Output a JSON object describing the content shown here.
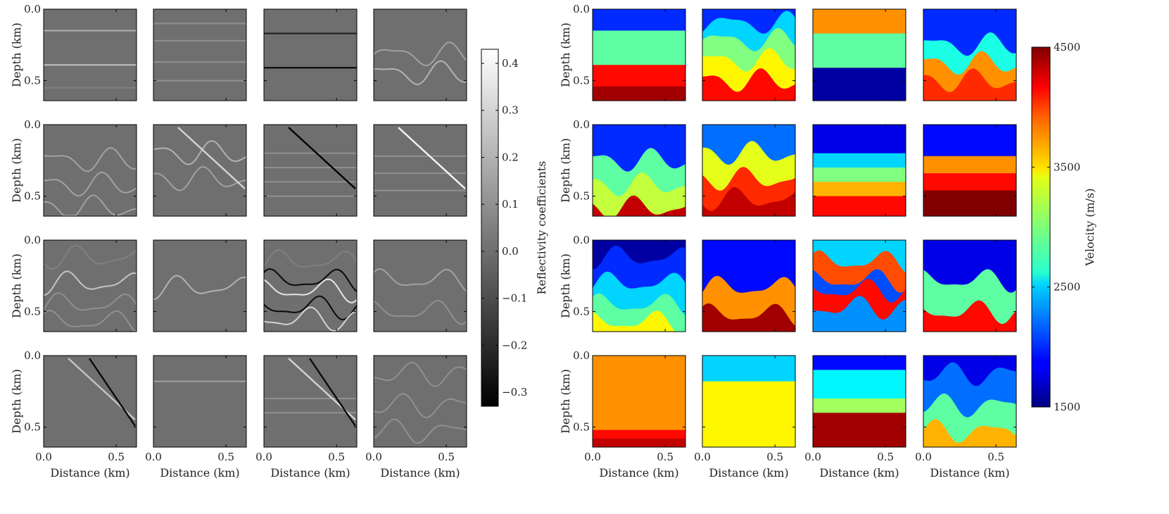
{
  "chart_data": [
    {
      "type": "heatmap",
      "title": "",
      "xlabel": "Distance (km)",
      "ylabel": "Depth (km)",
      "xlim": [
        0,
        0.64
      ],
      "ylim": [
        0.64,
        0
      ],
      "xticks": [
        "0.0",
        "0.5"
      ],
      "yticks": [
        "0.0",
        "0.5"
      ],
      "grid": [
        4,
        4
      ],
      "colorbar": {
        "label": "Reflectivity coefficients",
        "colormap": "gray",
        "range": [
          -0.33,
          0.43
        ],
        "ticks": [
          "−0.3",
          "−0.2",
          "−0.1",
          "0.0",
          "0.1",
          "0.2",
          "0.3",
          "0.4"
        ],
        "tick_values": [
          -0.3,
          -0.2,
          -0.1,
          0.0,
          0.1,
          0.2,
          0.3,
          0.4
        ]
      },
      "background_value": 0.0,
      "panels": [
        {
          "row": 0,
          "col": 0,
          "reflectors": [
            {
              "depth": 0.15,
              "value": 0.2
            },
            {
              "depth": 0.39,
              "value": 0.25
            },
            {
              "depth": 0.55,
              "value": 0.05
            }
          ]
        },
        {
          "row": 0,
          "col": 1,
          "reflectors": [
            {
              "depth": 0.1,
              "value": 0.1
            },
            {
              "depth": 0.22,
              "value": 0.1
            },
            {
              "depth": 0.37,
              "value": 0.1
            },
            {
              "depth": 0.5,
              "value": 0.1
            }
          ]
        },
        {
          "row": 0,
          "col": 2,
          "reflectors": [
            {
              "depth": 0.17,
              "value": -0.25
            },
            {
              "depth": 0.41,
              "value": -0.33
            }
          ]
        },
        {
          "row": 0,
          "col": 3,
          "reflectors": [
            {
              "depth": 0.32,
              "value": 0.15,
              "wavy": true
            },
            {
              "depth": 0.45,
              "value": 0.2,
              "wavy": true
            }
          ]
        },
        {
          "row": 1,
          "col": 0,
          "reflectors": [
            {
              "depth": 0.25,
              "value": 0.15,
              "wavy": true
            },
            {
              "depth": 0.42,
              "value": 0.15,
              "wavy": true
            },
            {
              "depth": 0.58,
              "value": 0.15,
              "wavy": true
            }
          ]
        },
        {
          "row": 1,
          "col": 1,
          "reflectors": [
            {
              "depth": 0.2,
              "value": 0.2,
              "wavy": true
            },
            {
              "depth": 0.38,
              "value": 0.15,
              "wavy": true
            },
            {
              "dipping": true,
              "value": 0.3
            }
          ]
        },
        {
          "row": 1,
          "col": 2,
          "reflectors": [
            {
              "depth": 0.2,
              "value": 0.1
            },
            {
              "depth": 0.3,
              "value": 0.1
            },
            {
              "depth": 0.4,
              "value": 0.1
            },
            {
              "depth": 0.5,
              "value": 0.1
            },
            {
              "dipping": true,
              "value": -0.33
            }
          ]
        },
        {
          "row": 1,
          "col": 3,
          "reflectors": [
            {
              "depth": 0.22,
              "value": 0.1
            },
            {
              "depth": 0.34,
              "value": 0.1
            },
            {
              "depth": 0.46,
              "value": 0.1
            },
            {
              "dipping": true,
              "value": 0.4
            }
          ]
        },
        {
          "row": 2,
          "col": 0,
          "reflectors": [
            {
              "depth": 0.12,
              "value": 0.05,
              "wavy": true
            },
            {
              "depth": 0.3,
              "value": 0.25,
              "wavy": true
            },
            {
              "depth": 0.45,
              "value": 0.1,
              "wavy": true
            },
            {
              "depth": 0.57,
              "value": 0.1,
              "wavy": true
            }
          ]
        },
        {
          "row": 2,
          "col": 1,
          "reflectors": [
            {
              "depth": 0.33,
              "value": 0.2,
              "wavy": true
            }
          ]
        },
        {
          "row": 2,
          "col": 2,
          "reflectors": [
            {
              "depth": 0.15,
              "value": 0.05,
              "wavy": true
            },
            {
              "depth": 0.28,
              "value": -0.3,
              "wavy": true
            },
            {
              "depth": 0.35,
              "value": 0.35,
              "wavy": true
            },
            {
              "depth": 0.47,
              "value": -0.3,
              "wavy": true
            },
            {
              "depth": 0.55,
              "value": 0.3,
              "wavy": true
            }
          ]
        },
        {
          "row": 2,
          "col": 3,
          "reflectors": [
            {
              "depth": 0.28,
              "value": 0.15,
              "wavy": true
            },
            {
              "depth": 0.5,
              "value": 0.1,
              "wavy": true
            }
          ]
        },
        {
          "row": 3,
          "col": 0,
          "reflectors": [
            {
              "dipping": true,
              "value": 0.25
            },
            {
              "dipping": true,
              "value": -0.3
            }
          ]
        },
        {
          "row": 3,
          "col": 1,
          "reflectors": [
            {
              "depth": 0.18,
              "value": 0.15
            }
          ]
        },
        {
          "row": 3,
          "col": 2,
          "reflectors": [
            {
              "depth": 0.3,
              "value": 0.1
            },
            {
              "depth": 0.4,
              "value": 0.1
            },
            {
              "dipping": true,
              "value": 0.3
            },
            {
              "dipping": true,
              "value": -0.3
            }
          ]
        },
        {
          "row": 3,
          "col": 3,
          "reflectors": [
            {
              "depth": 0.13,
              "value": 0.1,
              "wavy": true
            },
            {
              "depth": 0.35,
              "value": 0.1,
              "wavy": true
            },
            {
              "depth": 0.53,
              "value": 0.1,
              "wavy": true
            }
          ]
        }
      ]
    },
    {
      "type": "heatmap",
      "title": "",
      "xlabel": "Distance (km)",
      "ylabel": "Depth (km)",
      "xlim": [
        0,
        0.64
      ],
      "ylim": [
        0.64,
        0
      ],
      "xticks": [
        "0.0",
        "0.5"
      ],
      "yticks": [
        "0.0",
        "0.5"
      ],
      "grid": [
        4,
        4
      ],
      "colorbar": {
        "label": "Velocity (m/s)",
        "colormap": "jet",
        "range": [
          1500,
          4500
        ],
        "ticks": [
          "1500",
          "2500",
          "3500",
          "4500"
        ],
        "tick_values": [
          1500,
          2500,
          3500,
          4500
        ]
      },
      "panels": [
        {
          "row": 0,
          "col": 0,
          "layers": [
            {
              "top": 0.0,
              "velocity": 2000
            },
            {
              "top": 0.15,
              "velocity": 2900
            },
            {
              "top": 0.39,
              "velocity": 4100
            },
            {
              "top": 0.54,
              "velocity": 4400
            }
          ]
        },
        {
          "row": 0,
          "col": 1,
          "layers": [
            {
              "top": 0.0,
              "velocity": 2000
            },
            {
              "top": 0.1,
              "velocity": 2500
            },
            {
              "top": 0.22,
              "velocity": 3000
            },
            {
              "top": 0.36,
              "velocity": 3400
            },
            {
              "top": 0.5,
              "velocity": 4100
            }
          ]
        },
        {
          "row": 0,
          "col": 2,
          "layers": [
            {
              "top": 0.0,
              "velocity": 3700
            },
            {
              "top": 0.17,
              "velocity": 2900
            },
            {
              "top": 0.41,
              "velocity": 1600
            }
          ]
        },
        {
          "row": 0,
          "col": 3,
          "layers": [
            {
              "top": 0.0,
              "velocity": 2000
            },
            {
              "top": 0.25,
              "velocity": 2700
            },
            {
              "top": 0.38,
              "velocity": 3700
            },
            {
              "top": 0.5,
              "velocity": 4000
            }
          ]
        },
        {
          "row": 1,
          "col": 0,
          "layers": [
            {
              "top": 0.0,
              "velocity": 2000
            },
            {
              "top": 0.25,
              "velocity": 2900
            },
            {
              "top": 0.42,
              "velocity": 3200
            },
            {
              "top": 0.58,
              "velocity": 4300
            }
          ]
        },
        {
          "row": 1,
          "col": 1,
          "layers": [
            {
              "top": 0.0,
              "velocity": 2200
            },
            {
              "top": 0.2,
              "velocity": 3300
            },
            {
              "top": 0.38,
              "velocity": 4000
            },
            {
              "top": 0.52,
              "velocity": 4300
            }
          ]
        },
        {
          "row": 1,
          "col": 2,
          "layers": [
            {
              "top": 0.0,
              "velocity": 1800
            },
            {
              "top": 0.2,
              "velocity": 2500
            },
            {
              "top": 0.3,
              "velocity": 3000
            },
            {
              "top": 0.4,
              "velocity": 3600
            },
            {
              "top": 0.5,
              "velocity": 4100
            }
          ]
        },
        {
          "row": 1,
          "col": 3,
          "layers": [
            {
              "top": 0.0,
              "velocity": 1900
            },
            {
              "top": 0.22,
              "velocity": 3700
            },
            {
              "top": 0.34,
              "velocity": 4100
            },
            {
              "top": 0.46,
              "velocity": 4500
            }
          ]
        },
        {
          "row": 2,
          "col": 0,
          "layers": [
            {
              "top": 0.0,
              "velocity": 1600
            },
            {
              "top": 0.12,
              "velocity": 2000
            },
            {
              "top": 0.3,
              "velocity": 2500
            },
            {
              "top": 0.45,
              "velocity": 2900
            },
            {
              "top": 0.57,
              "velocity": 3400
            }
          ]
        },
        {
          "row": 2,
          "col": 1,
          "layers": [
            {
              "top": 0.0,
              "velocity": 1900
            },
            {
              "top": 0.33,
              "velocity": 3700
            },
            {
              "top": 0.52,
              "velocity": 4400
            }
          ]
        },
        {
          "row": 2,
          "col": 2,
          "layers": [
            {
              "top": 0.0,
              "velocity": 2500
            },
            {
              "top": 0.15,
              "velocity": 3900
            },
            {
              "top": 0.28,
              "velocity": 2100
            },
            {
              "top": 0.35,
              "velocity": 4100
            },
            {
              "top": 0.47,
              "velocity": 2300
            }
          ]
        },
        {
          "row": 2,
          "col": 3,
          "layers": [
            {
              "top": 0.0,
              "velocity": 1800
            },
            {
              "top": 0.28,
              "velocity": 2900
            },
            {
              "top": 0.5,
              "velocity": 4100
            }
          ]
        },
        {
          "row": 3,
          "col": 0,
          "layers": [
            {
              "top": 0.0,
              "velocity": 3700
            },
            {
              "top": 0.52,
              "velocity": 4100
            },
            {
              "top": 0.58,
              "velocity": 4300
            }
          ]
        },
        {
          "row": 3,
          "col": 1,
          "layers": [
            {
              "top": 0.0,
              "velocity": 2500
            },
            {
              "top": 0.18,
              "velocity": 3400
            }
          ]
        },
        {
          "row": 3,
          "col": 2,
          "layers": [
            {
              "top": 0.0,
              "velocity": 1900
            },
            {
              "top": 0.1,
              "velocity": 2600
            },
            {
              "top": 0.3,
              "velocity": 3100
            },
            {
              "top": 0.4,
              "velocity": 4400
            }
          ]
        },
        {
          "row": 3,
          "col": 3,
          "layers": [
            {
              "top": 0.0,
              "velocity": 1800
            },
            {
              "top": 0.13,
              "velocity": 2200
            },
            {
              "top": 0.35,
              "velocity": 2900
            },
            {
              "top": 0.53,
              "velocity": 3600
            }
          ]
        }
      ]
    }
  ]
}
